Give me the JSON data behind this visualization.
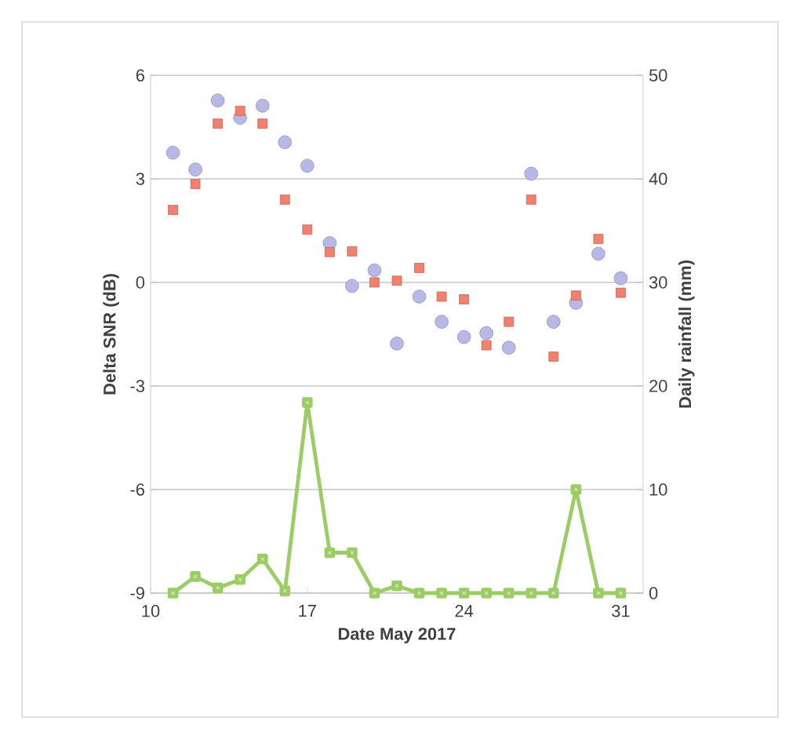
{
  "chart_data": {
    "type": "scatter",
    "xlabel": "Date May 2017",
    "ylabel": "Delta SNR (dB)",
    "y2label": "Daily rainfall (mm)",
    "x": [
      11,
      12,
      13,
      14,
      15,
      16,
      17,
      18,
      19,
      20,
      21,
      22,
      23,
      24,
      25,
      26,
      27,
      28,
      29,
      30,
      31
    ],
    "xlim": [
      10,
      32
    ],
    "xticks": [
      10,
      17,
      24,
      31
    ],
    "ylim": [
      -9,
      6
    ],
    "yticks": [
      -9,
      -6,
      -3,
      0,
      3,
      6
    ],
    "y2lim": [
      0,
      50
    ],
    "y2ticks": [
      0,
      10,
      20,
      30,
      40,
      50
    ],
    "grid": "y",
    "series": [
      {
        "marker": "circle",
        "color": "#b8b8e6",
        "values": [
          3.76,
          3.27,
          5.27,
          4.77,
          5.12,
          4.06,
          3.38,
          1.14,
          -0.1,
          0.35,
          -1.77,
          -0.41,
          -1.14,
          -1.58,
          -1.47,
          -1.89,
          3.15,
          -1.14,
          -0.59,
          0.83,
          0.12
        ]
      },
      {
        "marker": "square",
        "color": "#f2806e",
        "values": [
          2.1,
          2.85,
          4.6,
          4.97,
          4.6,
          2.4,
          1.53,
          0.88,
          0.9,
          0.0,
          0.05,
          0.42,
          -0.41,
          -0.49,
          -1.82,
          -1.14,
          2.4,
          -2.15,
          -0.38,
          1.26,
          -0.3
        ]
      },
      {
        "type": "line",
        "axis": "y2",
        "marker": "square",
        "color": "#9ccc65",
        "values": [
          0,
          1.6,
          0.5,
          1.3,
          3.3,
          0.2,
          18.4,
          3.9,
          3.9,
          0,
          0.7,
          0,
          0,
          0,
          0,
          0,
          0,
          0,
          10,
          0,
          0
        ]
      }
    ]
  }
}
